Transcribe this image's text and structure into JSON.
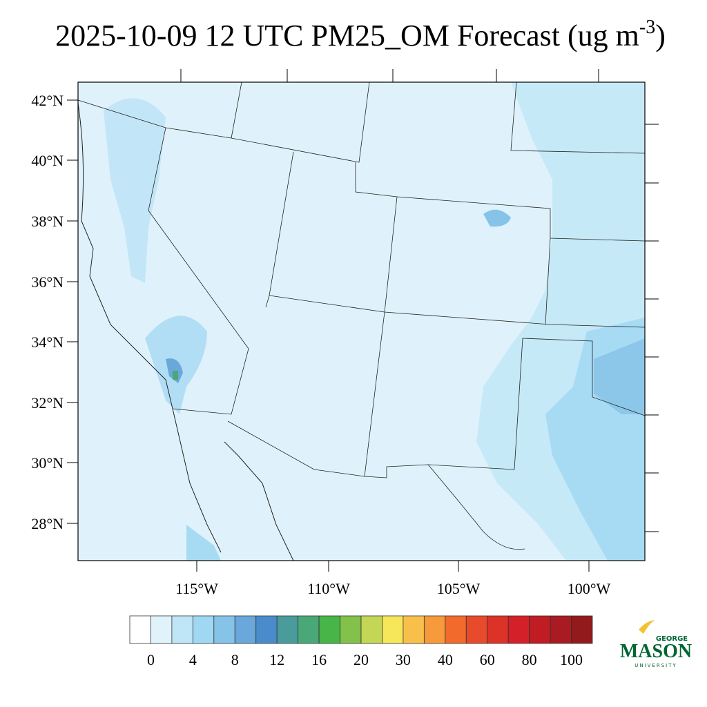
{
  "title": {
    "main": "2025-10-09 12 UTC PM25_OM Forecast (ug m",
    "superscript": "-3",
    "close": ")"
  },
  "map": {
    "lat_labels": [
      "42°N",
      "40°N",
      "38°N",
      "36°N",
      "34°N",
      "32°N",
      "30°N",
      "28°N"
    ],
    "lon_labels": [
      "115°W",
      "110°W",
      "105°W",
      "100°W"
    ]
  },
  "colorbar": {
    "colors": [
      "#ffffff",
      "#e0f3fb",
      "#bfe6f7",
      "#a0d8f3",
      "#86c3e8",
      "#6aa8db",
      "#4a8ccb",
      "#4a9c9c",
      "#4aa878",
      "#48b548",
      "#82c24a",
      "#c4d656",
      "#f6e65a",
      "#f8c04a",
      "#f79a3c",
      "#f26a2c",
      "#e84a2c",
      "#dd3228",
      "#d42028",
      "#c01c24",
      "#aa1a22",
      "#921a1c"
    ],
    "labels": [
      0,
      4,
      8,
      12,
      16,
      20,
      30,
      40,
      60,
      80,
      100
    ]
  },
  "logo": {
    "top": "GEORGE",
    "main": "MASON",
    "bottom": "UNIVERSITY"
  }
}
